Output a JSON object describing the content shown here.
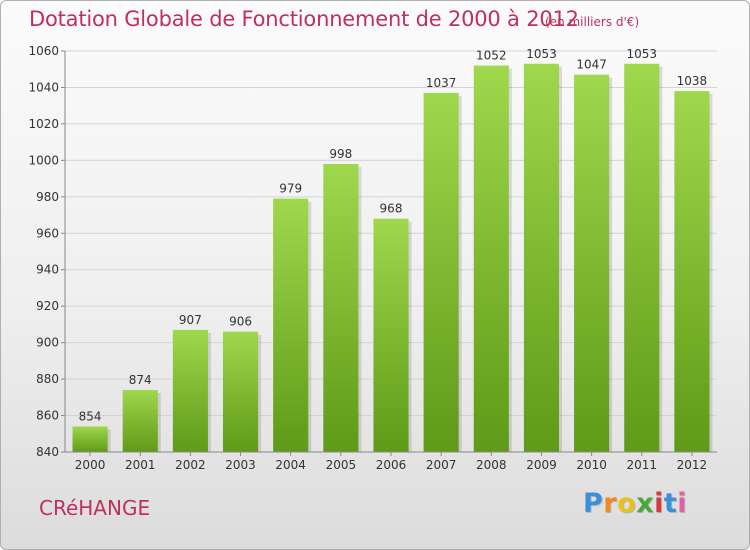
{
  "header": {
    "title": "Dotation Globale de Fonctionnement de 2000 à 2012",
    "unit": "(en milliers d'€)"
  },
  "footer": {
    "commune": "CRéHANGE",
    "logo": {
      "letters": [
        "P",
        "r",
        "o",
        "x",
        "i",
        "t",
        "i"
      ],
      "colors": [
        "#3a8fd8",
        "#f08a1c",
        "#e8c21a",
        "#4aa83a",
        "#d83a3a",
        "#3a8fd8",
        "#e060a0"
      ]
    }
  },
  "chart_data": {
    "type": "bar",
    "title": "Dotation Globale de Fonctionnement de 2000 à 2012",
    "subtitle": "(en milliers d'€)",
    "categories": [
      "2000",
      "2001",
      "2002",
      "2003",
      "2004",
      "2005",
      "2006",
      "2007",
      "2008",
      "2009",
      "2010",
      "2011",
      "2012"
    ],
    "values": [
      854,
      874,
      907,
      906,
      979,
      998,
      968,
      1037,
      1052,
      1053,
      1047,
      1053,
      1038
    ],
    "ylim": [
      840,
      1060
    ],
    "yticks": [
      840,
      860,
      880,
      900,
      920,
      940,
      960,
      980,
      1000,
      1020,
      1040,
      1060
    ],
    "grid": true,
    "bar_color": "#7fbf2f",
    "bar_color_light": "#9fd84c",
    "bar_color_dark": "#5f9a18"
  }
}
